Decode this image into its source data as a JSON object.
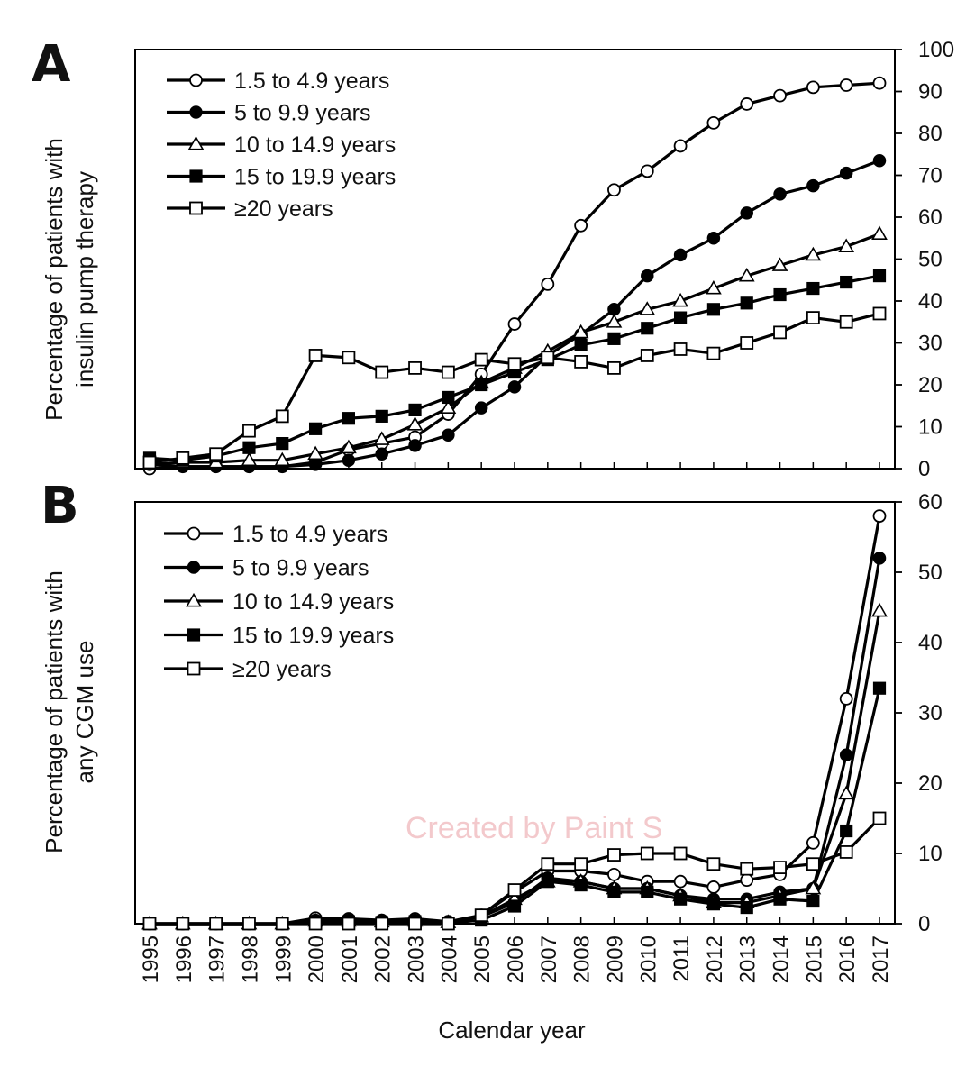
{
  "panels": [
    {
      "letter": "A",
      "ylabel": [
        "Percentage of patients with",
        "insulin pump therapy"
      ]
    },
    {
      "letter": "B",
      "ylabel": [
        "Percentage of patients with",
        "any CGM use"
      ]
    }
  ],
  "xlabel": "Calendar year",
  "watermark": "Created by Paint S",
  "chart_data": [
    {
      "type": "line",
      "title": "",
      "ylabel": "Percentage of patients with insulin pump therapy",
      "xlabel": "Calendar year",
      "x": [
        1995,
        1996,
        1997,
        1998,
        1999,
        2000,
        2001,
        2002,
        2003,
        2004,
        2005,
        2006,
        2007,
        2008,
        2009,
        2010,
        2011,
        2012,
        2013,
        2014,
        2015,
        2016,
        2017
      ],
      "ylim": [
        0,
        100
      ],
      "yticks": [
        0,
        10,
        20,
        30,
        40,
        50,
        60,
        70,
        80,
        90,
        100
      ],
      "y_axis_side": "right",
      "legend_position": "top-left",
      "grid": false,
      "series": [
        {
          "name": "1.5 to 4.9 years",
          "marker": "circle-open",
          "values": [
            0,
            0.5,
            0.5,
            0.5,
            0.5,
            1.5,
            4.5,
            6,
            7.5,
            13,
            22.5,
            34.5,
            44,
            58,
            66.5,
            71,
            77,
            82.5,
            87,
            89,
            91,
            91.5,
            92
          ]
        },
        {
          "name": "5 to 9.9 years",
          "marker": "circle-filled",
          "values": [
            1,
            0.5,
            0.5,
            0.5,
            0.5,
            1,
            2,
            3.5,
            5.5,
            8,
            14.5,
            19.5,
            27,
            32,
            38,
            46,
            51,
            55,
            61,
            65.5,
            67.5,
            70.5,
            73.5
          ]
        },
        {
          "name": "10 to 14.9 years",
          "marker": "triangle-open",
          "values": [
            1,
            1.5,
            1.5,
            2,
            2,
            3.5,
            5,
            7,
            10.5,
            14.5,
            20.5,
            24,
            28,
            32.5,
            35,
            38,
            40,
            43,
            46,
            48.5,
            51,
            53,
            56
          ]
        },
        {
          "name": "15 to 19.9 years",
          "marker": "square-filled",
          "values": [
            2.5,
            2,
            3,
            5,
            6,
            9.5,
            12,
            12.5,
            14,
            17,
            20,
            23,
            26,
            29.5,
            31,
            33.5,
            36,
            38,
            39.5,
            41.5,
            43,
            44.5,
            46
          ]
        },
        {
          "name": "≥20 years",
          "marker": "square-open",
          "values": [
            1.5,
            2.5,
            3.5,
            9,
            12.5,
            27,
            26.5,
            23,
            24,
            23,
            26,
            25,
            26.5,
            25.5,
            24,
            27,
            28.5,
            27.5,
            30,
            32.5,
            36,
            35,
            37
          ]
        }
      ]
    },
    {
      "type": "line",
      "title": "",
      "ylabel": "Percentage of patients with any CGM use",
      "xlabel": "Calendar year",
      "x": [
        1995,
        1996,
        1997,
        1998,
        1999,
        2000,
        2001,
        2002,
        2003,
        2004,
        2005,
        2006,
        2007,
        2008,
        2009,
        2010,
        2011,
        2012,
        2013,
        2014,
        2015,
        2016,
        2017
      ],
      "ylim": [
        0,
        60
      ],
      "yticks": [
        0,
        10,
        20,
        30,
        40,
        50,
        60
      ],
      "y_axis_side": "right",
      "legend_position": "top-left",
      "grid": false,
      "series": [
        {
          "name": "1.5 to 4.9 years",
          "marker": "circle-open",
          "values": [
            0,
            0,
            0,
            0,
            0,
            0.8,
            0.7,
            0.5,
            0.7,
            0.3,
            1.2,
            4.5,
            7.5,
            7.5,
            7,
            6,
            6,
            5.2,
            6.2,
            7,
            11.5,
            32,
            58
          ]
        },
        {
          "name": "5 to 9.9 years",
          "marker": "circle-filled",
          "values": [
            0,
            0,
            0,
            0,
            0,
            0.5,
            0.5,
            0.4,
            0.5,
            0.2,
            1,
            3,
            6.5,
            6,
            5,
            5,
            4,
            3.5,
            3.5,
            4.5,
            5,
            24,
            52
          ]
        },
        {
          "name": "10 to 14.9 years",
          "marker": "triangle-open",
          "values": [
            0,
            0,
            0,
            0,
            0,
            0.4,
            0.4,
            0.3,
            0.4,
            0.2,
            1,
            3.5,
            6,
            6,
            5,
            5,
            4,
            3,
            3,
            4,
            5,
            18.5,
            44.5
          ]
        },
        {
          "name": "15 to 19.9 years",
          "marker": "square-filled",
          "values": [
            0,
            0,
            0,
            0,
            0,
            0.3,
            0.3,
            0.2,
            0.3,
            0.1,
            0.5,
            2.5,
            6,
            5.5,
            4.5,
            4.5,
            3.5,
            2.8,
            2.3,
            3.5,
            3.2,
            13.2,
            33.5
          ]
        },
        {
          "name": "≥20 years",
          "marker": "square-open",
          "values": [
            0,
            0,
            0,
            0,
            0,
            0,
            0,
            0,
            0,
            0,
            1.2,
            4.8,
            8.5,
            8.5,
            9.8,
            10,
            10,
            8.5,
            7.8,
            8,
            8.5,
            10.2,
            15
          ]
        }
      ]
    }
  ]
}
